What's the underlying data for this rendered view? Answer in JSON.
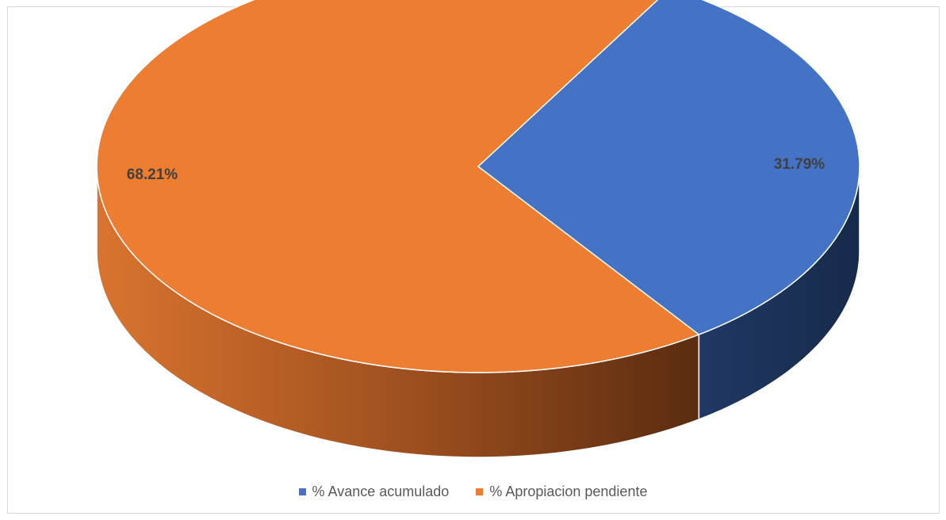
{
  "chart_data": {
    "type": "pie",
    "title": "",
    "categories": [
      "% Avance acumulado",
      "% Apropiacion pendiente"
    ],
    "values": [
      31.79,
      68.21
    ],
    "labels": [
      "31.79%",
      "68.21%"
    ],
    "colors": [
      "#4472C4",
      "#ED7D31"
    ],
    "side_colors": [
      "#1F3864",
      "#843C0C"
    ],
    "legend_position": "bottom",
    "style": "3d-pie"
  }
}
